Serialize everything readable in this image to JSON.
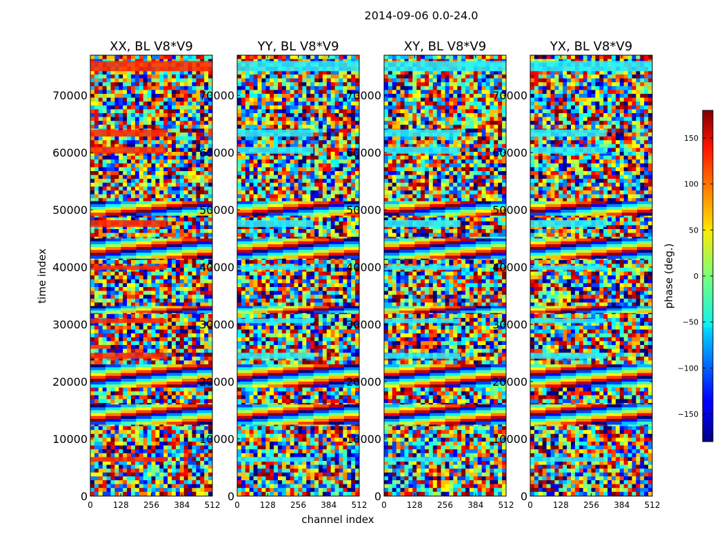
{
  "figure_title": "2014-09-06 0.0-24.0",
  "chart_data": {
    "type": "heatmap",
    "title": "2014-09-06 0.0-24.0",
    "xlabel": "channel index",
    "ylabel": "time index",
    "xlim": [
      0,
      512
    ],
    "ylim": [
      0,
      77000
    ],
    "x_ticks": [
      "0",
      "128",
      "256",
      "384",
      "512"
    ],
    "x_tick_values": [
      0,
      128,
      256,
      384,
      512
    ],
    "y_ticks": [
      "0",
      "10000",
      "20000",
      "30000",
      "40000",
      "50000",
      "60000",
      "70000"
    ],
    "y_tick_values": [
      0,
      10000,
      20000,
      30000,
      40000,
      50000,
      60000,
      70000
    ],
    "panels": [
      {
        "title": "XX, BL V8*V9",
        "tint": "#ff2a00"
      },
      {
        "title": "YY, BL V8*V9",
        "tint": "#27f0ff"
      },
      {
        "title": "XY, BL V8*V9",
        "tint": "#27f0ff"
      },
      {
        "title": "YX, BL V8*V9",
        "tint": "#27f0ff"
      }
    ],
    "bands": [
      {
        "y0": 74200,
        "y1": 76000,
        "kind": "tint",
        "x1": 512
      },
      {
        "y0": 62800,
        "y1": 64000,
        "kind": "tint",
        "x1": 320
      },
      {
        "y0": 59800,
        "y1": 61000,
        "kind": "tint",
        "x1": 320
      },
      {
        "y0": 49000,
        "y1": 51500,
        "kind": "fringe",
        "x1": 512
      },
      {
        "y0": 47000,
        "y1": 48200,
        "kind": "tint",
        "x1": 320
      },
      {
        "y0": 41500,
        "y1": 45000,
        "kind": "fringe",
        "x1": 512
      },
      {
        "y0": 39500,
        "y1": 40300,
        "kind": "tint",
        "x1": 320
      },
      {
        "y0": 32000,
        "y1": 33200,
        "kind": "fringe",
        "x1": 512
      },
      {
        "y0": 30200,
        "y1": 31000,
        "kind": "tint",
        "x1": 320
      },
      {
        "y0": 24000,
        "y1": 25000,
        "kind": "tint",
        "x1": 320
      },
      {
        "y0": 19000,
        "y1": 23000,
        "kind": "fringe",
        "x1": 512
      },
      {
        "y0": 12500,
        "y1": 16000,
        "kind": "fringe",
        "x1": 512
      },
      {
        "y0": 6000,
        "y1": 6800,
        "kind": "tint",
        "x1": 320
      }
    ],
    "colorbar": {
      "label": "phase (deg.)",
      "range": [
        -180,
        180
      ],
      "ticks": [
        "150",
        "100",
        "50",
        "0",
        "−50",
        "−100",
        "−150"
      ],
      "tick_values": [
        150,
        100,
        50,
        0,
        -50,
        -100,
        -150
      ]
    }
  }
}
